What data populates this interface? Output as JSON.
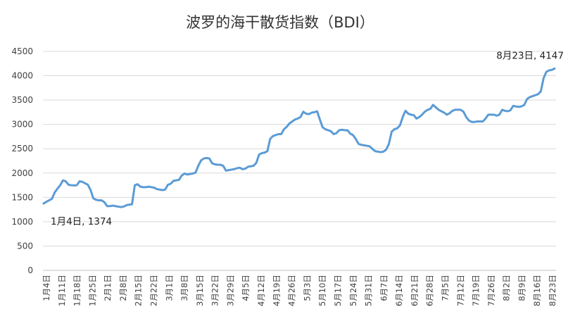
{
  "chart_data": {
    "type": "line",
    "title": "波罗的海干散货指数（BDI）",
    "xlabel": "",
    "ylabel": "",
    "ylim": [
      0,
      4500
    ],
    "yticks": [
      0,
      500,
      1000,
      1500,
      2000,
      2500,
      3000,
      3500,
      4000,
      4500
    ],
    "grid": true,
    "legend": "none",
    "x_tick_labels": [
      "1月4日",
      "1月11日",
      "1月18日",
      "1月25日",
      "2月1日",
      "2月8日",
      "2月15日",
      "2月22日",
      "3月1日",
      "3月8日",
      "3月15日",
      "3月22日",
      "3月29日",
      "4月5日",
      "4月12日",
      "4月19日",
      "4月26日",
      "5月3日",
      "5月10日",
      "5月17日",
      "5月24日",
      "5月31日",
      "6月7日",
      "6月14日",
      "6月21日",
      "6月28日",
      "7月5日",
      "7月12日",
      "7月19日",
      "7月26日",
      "8月2日",
      "8月9日",
      "8月16日",
      "8月23日"
    ],
    "colors": {
      "line": "#5b9bd5"
    },
    "series": [
      {
        "values": [
          1374,
          1410,
          1440,
          1470,
          1600,
          1680,
          1750,
          1850,
          1830,
          1760,
          1750,
          1745,
          1750,
          1830,
          1820,
          1790,
          1760,
          1650,
          1480,
          1450,
          1440,
          1440,
          1400,
          1320,
          1320,
          1330,
          1320,
          1310,
          1300,
          1310,
          1340,
          1350,
          1360,
          1750,
          1770,
          1720,
          1710,
          1710,
          1720,
          1710,
          1700,
          1670,
          1660,
          1650,
          1660,
          1760,
          1780,
          1840,
          1850,
          1860,
          1950,
          1990,
          1970,
          1980,
          1990,
          2010,
          2150,
          2260,
          2300,
          2310,
          2300,
          2200,
          2180,
          2170,
          2170,
          2150,
          2050,
          2060,
          2070,
          2080,
          2100,
          2110,
          2080,
          2090,
          2130,
          2140,
          2150,
          2210,
          2380,
          2410,
          2420,
          2450,
          2700,
          2760,
          2780,
          2800,
          2800,
          2900,
          2950,
          3020,
          3060,
          3100,
          3120,
          3150,
          3260,
          3220,
          3210,
          3240,
          3250,
          3270,
          3100,
          2940,
          2900,
          2880,
          2860,
          2800,
          2820,
          2880,
          2890,
          2880,
          2880,
          2810,
          2780,
          2700,
          2600,
          2580,
          2570,
          2560,
          2550,
          2500,
          2450,
          2440,
          2430,
          2440,
          2480,
          2600,
          2850,
          2900,
          2920,
          2980,
          3150,
          3280,
          3220,
          3200,
          3190,
          3120,
          3150,
          3200,
          3260,
          3300,
          3320,
          3400,
          3350,
          3300,
          3270,
          3240,
          3200,
          3230,
          3280,
          3300,
          3300,
          3300,
          3260,
          3150,
          3080,
          3050,
          3050,
          3060,
          3060,
          3060,
          3120,
          3200,
          3200,
          3200,
          3180,
          3200,
          3300,
          3280,
          3270,
          3290,
          3380,
          3370,
          3360,
          3370,
          3400,
          3520,
          3560,
          3580,
          3600,
          3620,
          3680,
          3950,
          4080,
          4110,
          4120,
          4147
        ]
      }
    ],
    "annotations": [
      {
        "text": "1月4日, 1374",
        "point": "first"
      },
      {
        "text": "8月23日, 4147",
        "point": "last"
      }
    ]
  }
}
